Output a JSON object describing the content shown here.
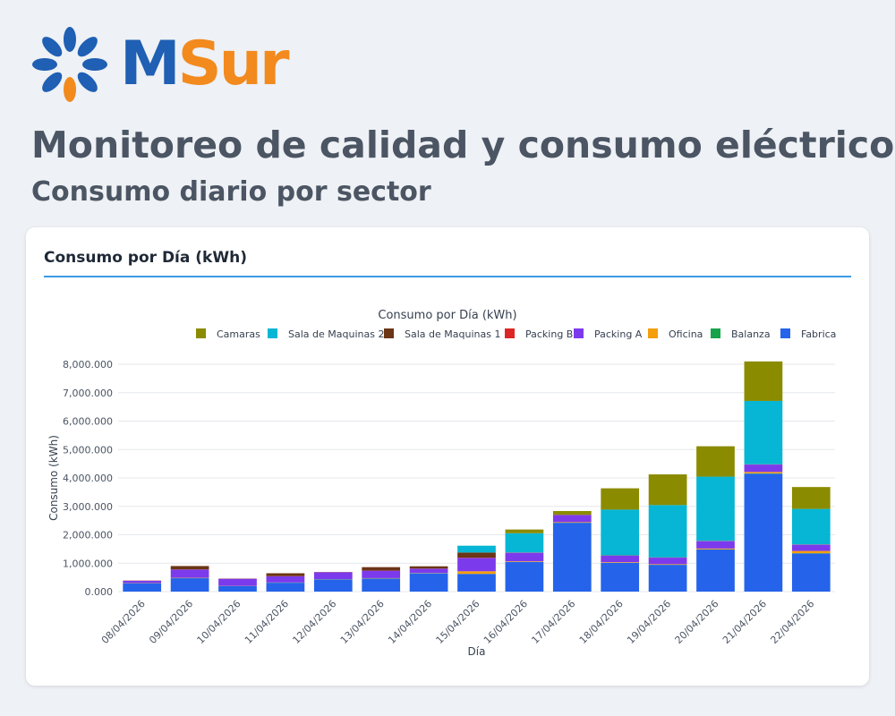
{
  "brand": {
    "name_m": "M",
    "name_sur": "Sur",
    "color_blue": "#1f5fb4",
    "color_orange": "#f28a1e"
  },
  "header": {
    "title": "Monitoreo de calidad y consumo eléctrico",
    "subtitle": "Consumo diario por sector"
  },
  "card": {
    "title": "Consumo por Día (kWh)"
  },
  "chart_data": {
    "type": "bar",
    "stacked": true,
    "title": "Consumo por Día (kWh)",
    "xlabel": "Día",
    "ylabel": "Consumo (kWh)",
    "ylim": [
      0,
      8000000
    ],
    "yticks": [
      0,
      1000000,
      2000000,
      3000000,
      4000000,
      5000000,
      6000000,
      7000000,
      8000000
    ],
    "ytick_labels": [
      "0.000",
      "1,000.000",
      "2,000.000",
      "3,000.000",
      "4,000.000",
      "5,000.000",
      "6,000.000",
      "7,000.000",
      "8,000.000"
    ],
    "grid": true,
    "legend_position": "top",
    "categories": [
      "08/04/2026",
      "09/04/2026",
      "10/04/2026",
      "11/04/2026",
      "12/04/2026",
      "13/04/2026",
      "14/04/2026",
      "15/04/2026",
      "16/04/2026",
      "17/04/2026",
      "18/04/2026",
      "19/04/2026",
      "20/04/2026",
      "21/04/2026",
      "22/04/2026"
    ],
    "series": [
      {
        "name": "Fabrica",
        "color": "#2563eb",
        "values": [
          290000,
          470000,
          190000,
          310000,
          430000,
          460000,
          640000,
          620000,
          1040000,
          2420000,
          1010000,
          940000,
          1480000,
          4150000,
          1340000
        ]
      },
      {
        "name": "Balanza",
        "color": "#16a34a",
        "values": [
          5000,
          5000,
          5000,
          5000,
          5000,
          5000,
          5000,
          5000,
          5000,
          5000,
          5000,
          5000,
          5000,
          10000,
          10000
        ]
      },
      {
        "name": "Oficina",
        "color": "#f59e0b",
        "values": [
          5000,
          10000,
          5000,
          5000,
          5000,
          10000,
          10000,
          90000,
          20000,
          20000,
          20000,
          20000,
          30000,
          50000,
          80000
        ]
      },
      {
        "name": "Packing A",
        "color": "#7c3aed",
        "values": [
          80000,
          290000,
          250000,
          220000,
          240000,
          260000,
          150000,
          470000,
          300000,
          250000,
          230000,
          230000,
          260000,
          260000,
          220000
        ]
      },
      {
        "name": "Packing B",
        "color": "#dc2626",
        "values": [
          5000,
          5000,
          5000,
          5000,
          5000,
          5000,
          5000,
          10000,
          5000,
          5000,
          5000,
          5000,
          5000,
          5000,
          5000
        ]
      },
      {
        "name": "Sala de Maquinas 1",
        "color": "#6b3516",
        "values": [
          5000,
          120000,
          5000,
          100000,
          5000,
          120000,
          80000,
          180000,
          5000,
          5000,
          5000,
          5000,
          5000,
          5000,
          5000
        ]
      },
      {
        "name": "Sala de Maquinas 2",
        "color": "#06b6d4",
        "values": [
          0,
          0,
          0,
          0,
          0,
          0,
          0,
          240000,
          680000,
          0,
          1610000,
          1840000,
          2260000,
          2230000,
          1250000
        ]
      },
      {
        "name": "Camaras",
        "color": "#8b8b00",
        "values": [
          0,
          0,
          0,
          0,
          0,
          0,
          0,
          0,
          130000,
          130000,
          750000,
          1080000,
          1070000,
          1390000,
          770000
        ]
      }
    ],
    "legend_order": [
      "Camaras",
      "Sala de Maquinas 2",
      "Sala de Maquinas 1",
      "Packing B",
      "Packing A",
      "Oficina",
      "Balanza",
      "Fabrica"
    ]
  }
}
